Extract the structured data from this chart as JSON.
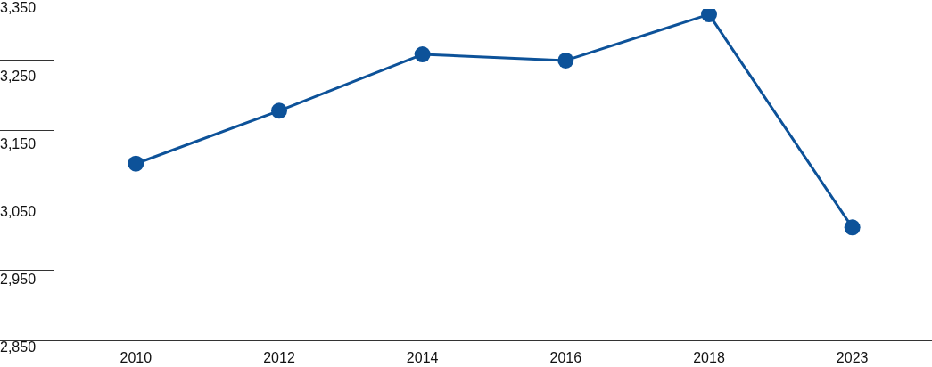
{
  "chart_data": {
    "type": "line",
    "categories": [
      "2010",
      "2012",
      "2014",
      "2016",
      "2018",
      "2023"
    ],
    "series": [
      {
        "color": "#0d5299",
        "values": [
          3122,
          3200,
          3283,
          3274,
          3342,
          3028
        ]
      }
    ],
    "ylim": [
      2850,
      3350
    ],
    "yticks": [
      {
        "value": 2850,
        "label": "2,850"
      },
      {
        "value": 2950,
        "label": "2,950"
      },
      {
        "value": 3050,
        "label": "3,050"
      },
      {
        "value": 3150,
        "label": "3,150"
      },
      {
        "value": 3250,
        "label": "3,250"
      },
      {
        "value": 3350,
        "label": "3,350"
      }
    ],
    "marker": "circle",
    "line_style": "solid",
    "grid": false,
    "legend": false
  }
}
